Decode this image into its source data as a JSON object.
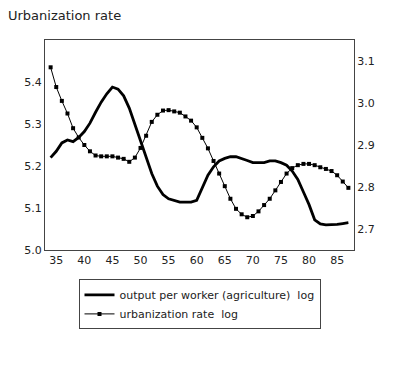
{
  "chart_data": {
    "type": "line",
    "title": "Urbanization rate",
    "x": [
      34,
      35,
      36,
      37,
      38,
      39,
      40,
      41,
      42,
      43,
      44,
      45,
      46,
      47,
      48,
      49,
      50,
      51,
      52,
      53,
      54,
      55,
      56,
      57,
      58,
      59,
      60,
      61,
      62,
      63,
      64,
      65,
      66,
      67,
      68,
      69,
      70,
      71,
      72,
      73,
      74,
      75,
      76,
      77,
      78,
      79,
      80,
      81,
      82,
      83,
      84,
      85,
      86,
      87
    ],
    "series": [
      {
        "name": "output per worker (agriculture)  log",
        "color": "#000000",
        "values": [
          5.22,
          5.235,
          5.255,
          5.262,
          5.258,
          5.268,
          5.282,
          5.302,
          5.328,
          5.352,
          5.372,
          5.388,
          5.383,
          5.367,
          5.338,
          5.298,
          5.262,
          5.222,
          5.182,
          5.152,
          5.132,
          5.122,
          5.118,
          5.114,
          5.114,
          5.114,
          5.118,
          5.148,
          5.178,
          5.198,
          5.212,
          5.218,
          5.222,
          5.222,
          5.218,
          5.213,
          5.208,
          5.208,
          5.208,
          5.212,
          5.212,
          5.208,
          5.202,
          5.188,
          5.168,
          5.138,
          5.108,
          5.072,
          5.062,
          5.06,
          5.06,
          5.061,
          5.063,
          5.065
        ]
      },
      {
        "name": "urbanization rate  log",
        "color": "#000000",
        "axis": "y2",
        "marker": "square",
        "values": [
          3.085,
          3.038,
          3.005,
          2.975,
          2.94,
          2.918,
          2.9,
          2.885,
          2.875,
          2.873,
          2.873,
          2.873,
          2.87,
          2.867,
          2.86,
          2.87,
          2.893,
          2.922,
          2.955,
          2.972,
          2.982,
          2.983,
          2.98,
          2.977,
          2.968,
          2.958,
          2.942,
          2.917,
          2.892,
          2.862,
          2.832,
          2.802,
          2.772,
          2.748,
          2.735,
          2.728,
          2.731,
          2.742,
          2.757,
          2.772,
          2.792,
          2.812,
          2.832,
          2.845,
          2.852,
          2.855,
          2.855,
          2.852,
          2.847,
          2.843,
          2.838,
          2.828,
          2.813,
          2.798
        ]
      }
    ],
    "xlim": [
      33,
      88
    ],
    "xticks": [
      35,
      40,
      45,
      50,
      55,
      60,
      65,
      70,
      75,
      80,
      85
    ],
    "ylim": [
      5.0,
      5.5
    ],
    "yticks": [
      {
        "value": 5,
        "label": "5.0"
      },
      5.1,
      5.2,
      5.3,
      5.4
    ],
    "y2lim": [
      2.65,
      3.15
    ],
    "y2ticks": [
      2.7,
      2.8,
      2.9,
      {
        "value": 3,
        "label": "3.0"
      },
      3.1
    ],
    "grid": false,
    "legend": "bottom"
  }
}
